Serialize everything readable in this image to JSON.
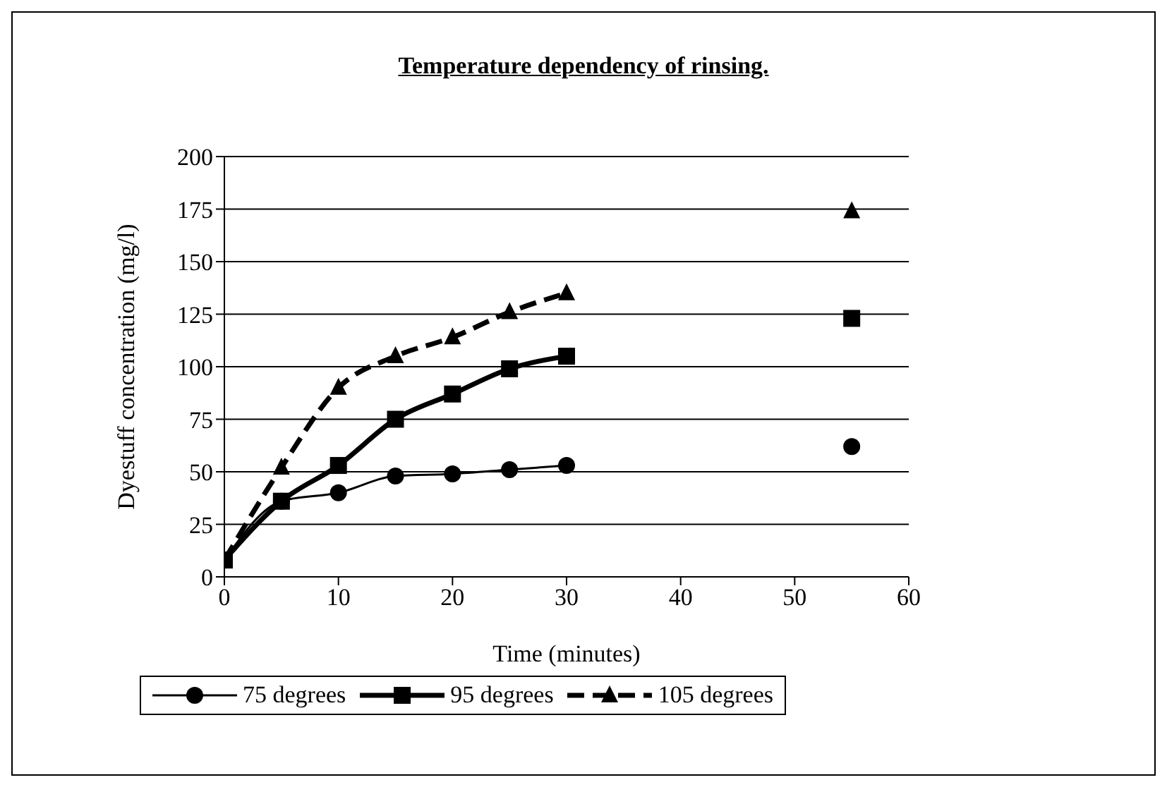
{
  "chart_data": {
    "type": "line",
    "title": "Temperature dependency of rinsing.",
    "xlabel": "Time (minutes)",
    "ylabel": "Dyestuff concentration (mg/l)",
    "x": [
      0,
      5,
      10,
      15,
      20,
      25,
      30,
      40,
      55
    ],
    "series": [
      {
        "name": "75 degrees",
        "color": "#000000",
        "marker": "circle",
        "line_style": "solid",
        "values": [
          8,
          36,
          40,
          48,
          49,
          51,
          53,
          null,
          62
        ]
      },
      {
        "name": "95 degrees",
        "color": "#000000",
        "marker": "square",
        "line_style": "solid",
        "values": [
          8,
          36,
          53,
          75,
          87,
          99,
          105,
          null,
          123
        ]
      },
      {
        "name": "105 degrees",
        "color": "#000000",
        "marker": "triangle",
        "line_style": "dashed",
        "values": [
          8,
          52,
          90,
          105,
          114,
          126,
          135,
          null,
          174
        ]
      }
    ],
    "xlim": [
      0,
      60
    ],
    "xticks": [
      0,
      10,
      20,
      30,
      40,
      50,
      60
    ],
    "ylim": [
      0,
      200
    ],
    "yticks": [
      0,
      25,
      50,
      75,
      100,
      125,
      150,
      175,
      200
    ],
    "grid": "y",
    "legend": "bottom"
  }
}
